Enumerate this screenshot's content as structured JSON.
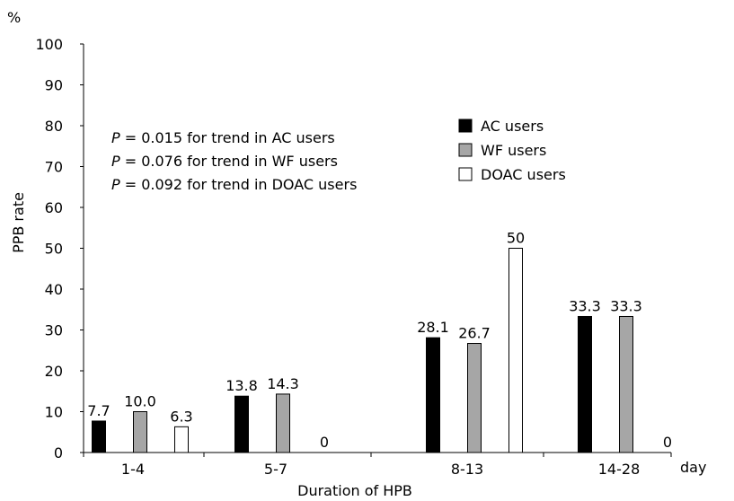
{
  "chart_data": {
    "type": "bar",
    "categories": [
      "1-4",
      "5-7",
      "8-13",
      "14-28"
    ],
    "series": [
      {
        "name": "AC users",
        "values": [
          7.7,
          13.8,
          28.1,
          33.3
        ],
        "labels": [
          "7.7",
          "13.8",
          "28.1",
          "33.3"
        ],
        "color": "#000000"
      },
      {
        "name": "WF users",
        "values": [
          10.0,
          14.3,
          26.7,
          33.3
        ],
        "labels": [
          "10.0",
          "14.3",
          "26.7",
          "33.3"
        ],
        "color": "#a6a6a6"
      },
      {
        "name": "DOAC users",
        "values": [
          6.3,
          0,
          50,
          0
        ],
        "labels": [
          "6.3",
          "0",
          "50",
          "0"
        ],
        "color": "#ffffff"
      }
    ],
    "ylim": [
      0,
      100
    ],
    "yticks": [
      "0",
      "10",
      "20",
      "30",
      "40",
      "50",
      "60",
      "70",
      "80",
      "90",
      "100"
    ],
    "ylabel": "PPB rate",
    "y_unit": "%",
    "xlabel": "Duration of HPB",
    "x_unit": "day",
    "legend_position": "top-right",
    "grid": false,
    "annotations": [
      {
        "p": "P",
        "text": " = 0.015 for trend in AC users"
      },
      {
        "p": "P",
        "text": " = 0.076 for trend in WF users"
      },
      {
        "p": "P",
        "text": " = 0.092 for trend in DOAC users"
      }
    ]
  }
}
